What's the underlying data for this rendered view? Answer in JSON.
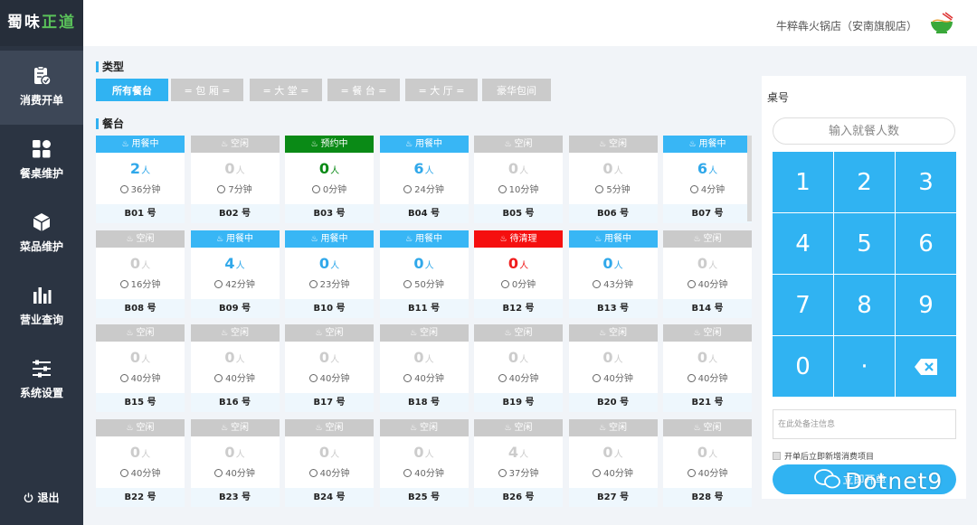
{
  "brand": {
    "part1": "蜀味",
    "part2": "正道"
  },
  "nav": [
    {
      "label": "消费开单",
      "icon": "clipboard-icon",
      "active": true
    },
    {
      "label": "餐桌维护",
      "icon": "grid-icon",
      "active": false
    },
    {
      "label": "菜品维护",
      "icon": "cube-icon",
      "active": false
    },
    {
      "label": "营业查询",
      "icon": "bar-chart-icon",
      "active": false
    },
    {
      "label": "系统设置",
      "icon": "sliders-icon",
      "active": false
    }
  ],
  "logout": {
    "label": "退出",
    "icon": "power-icon"
  },
  "header": {
    "store_name": "牛粹犇火锅店（安南旗舰店）"
  },
  "sections": {
    "type_title": "类型",
    "tables_title": "餐台"
  },
  "categories": [
    {
      "label": "所有餐台",
      "active": true
    },
    {
      "label": "= 包 厢 =",
      "active": false
    },
    {
      "label": "= 大 堂 =",
      "active": false
    },
    {
      "label": "= 餐 台 =",
      "active": false
    },
    {
      "label": "= 大 厅 =",
      "active": false
    },
    {
      "label": "豪华包间",
      "active": false
    }
  ],
  "status_labels": {
    "free": "空闲",
    "busy": "用餐中",
    "reserved": "预约中",
    "cleaning": "待清理"
  },
  "unit_person": "人",
  "unit_minutes": "分钟",
  "tables": [
    {
      "name": "B01 号",
      "status": "busy",
      "people": "2",
      "minutes": "36"
    },
    {
      "name": "B02 号",
      "status": "free",
      "people": "0",
      "minutes": "7"
    },
    {
      "name": "B03 号",
      "status": "reserved",
      "people": "0",
      "minutes": "0"
    },
    {
      "name": "B04 号",
      "status": "busy",
      "people": "6",
      "minutes": "24"
    },
    {
      "name": "B05 号",
      "status": "free",
      "people": "0",
      "minutes": "10"
    },
    {
      "name": "B06 号",
      "status": "free",
      "people": "0",
      "minutes": "5"
    },
    {
      "name": "B07 号",
      "status": "busy",
      "people": "6",
      "minutes": "4"
    },
    {
      "name": "B08 号",
      "status": "free",
      "people": "0",
      "minutes": "16"
    },
    {
      "name": "B09 号",
      "status": "busy",
      "people": "4",
      "minutes": "42"
    },
    {
      "name": "B10 号",
      "status": "busy",
      "people": "0",
      "minutes": "23"
    },
    {
      "name": "B11 号",
      "status": "busy",
      "people": "0",
      "minutes": "50"
    },
    {
      "name": "B12 号",
      "status": "cleaning",
      "people": "0",
      "minutes": "0"
    },
    {
      "name": "B13 号",
      "status": "busy",
      "people": "0",
      "minutes": "43"
    },
    {
      "name": "B14 号",
      "status": "free",
      "people": "0",
      "minutes": "40"
    },
    {
      "name": "B15 号",
      "status": "free",
      "people": "0",
      "minutes": "40"
    },
    {
      "name": "B16 号",
      "status": "free",
      "people": "0",
      "minutes": "40"
    },
    {
      "name": "B17 号",
      "status": "free",
      "people": "0",
      "minutes": "40"
    },
    {
      "name": "B18 号",
      "status": "free",
      "people": "0",
      "minutes": "40"
    },
    {
      "name": "B19 号",
      "status": "free",
      "people": "0",
      "minutes": "40"
    },
    {
      "name": "B20 号",
      "status": "free",
      "people": "0",
      "minutes": "40"
    },
    {
      "name": "B21 号",
      "status": "free",
      "people": "0",
      "minutes": "40"
    },
    {
      "name": "B22 号",
      "status": "free",
      "people": "0",
      "minutes": "40"
    },
    {
      "name": "B23 号",
      "status": "free",
      "people": "0",
      "minutes": "40"
    },
    {
      "name": "B24 号",
      "status": "free",
      "people": "0",
      "minutes": "40"
    },
    {
      "name": "B25 号",
      "status": "free",
      "people": "0",
      "minutes": "40"
    },
    {
      "name": "B26 号",
      "status": "free",
      "people": "4",
      "minutes": "37"
    },
    {
      "name": "B27 号",
      "status": "free",
      "people": "0",
      "minutes": "40"
    },
    {
      "name": "B28 号",
      "status": "free",
      "people": "0",
      "minutes": "40"
    }
  ],
  "panel": {
    "title": "桌号",
    "guest_placeholder": "输入就餐人数",
    "keys": [
      "1",
      "2",
      "3",
      "4",
      "5",
      "6",
      "7",
      "8",
      "9",
      "0",
      "·",
      "⌫"
    ],
    "notes_placeholder": "在此处备注信息",
    "option_label": "开单后立即新增消费项目",
    "open_button": "立即开单"
  },
  "watermark": "Dotnet9",
  "colors": {
    "accent": "#30b3f2",
    "busy": "#38b6f5",
    "reserved": "#0a8a16",
    "cleaning": "#f50f0f",
    "free": "#cacaca",
    "sidebar": "#2b3442"
  }
}
